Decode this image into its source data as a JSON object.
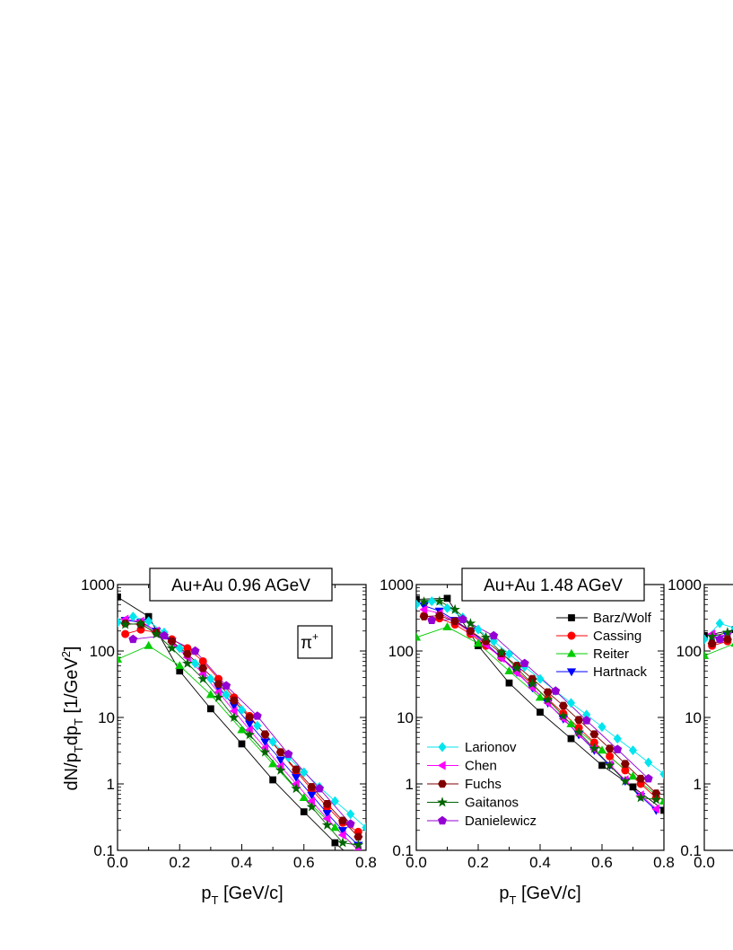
{
  "figure": {
    "ylabel": "dN/p",
    "ylabel_sub": "T",
    "ylabel_mid": "dp",
    "ylabel_sub2": "T",
    "ylabel_unit": " [1/GeV",
    "ylabel_sup": "2",
    "ylabel_end": "]",
    "xlabel_main": "p",
    "xlabel_sub": "T",
    "xlabel_unit": " [GeV/c]",
    "particle_label": "π",
    "particle_sup": "+"
  },
  "chart_data": [
    {
      "type": "line",
      "title": "Au+Au 0.96 AGeV",
      "xlim": [
        0.0,
        0.8
      ],
      "ylim": [
        0.1,
        1000
      ],
      "yscale": "log",
      "xticks": [
        "0.0",
        "0.2",
        "0.4",
        "0.6",
        "0.8"
      ],
      "yticks": [
        "0.1",
        "1",
        "10",
        "100",
        "1000"
      ],
      "series": [
        {
          "name": "Barz/Wolf",
          "color": "#000000",
          "marker": "square",
          "x": [
            0.0,
            0.1,
            0.2,
            0.3,
            0.4,
            0.5,
            0.6,
            0.7,
            0.8
          ],
          "y": [
            650,
            330,
            50,
            13.5,
            4.0,
            1.15,
            0.38,
            0.13,
            0.05
          ]
        },
        {
          "name": "Cassing",
          "color": "#ff0000",
          "marker": "circle",
          "x": [
            0.025,
            0.075,
            0.125,
            0.175,
            0.225,
            0.275,
            0.325,
            0.375,
            0.425,
            0.475,
            0.525,
            0.575,
            0.625,
            0.675,
            0.725,
            0.775
          ],
          "y": [
            180,
            210,
            190,
            150,
            110,
            70,
            38,
            20,
            10.5,
            5.5,
            3.0,
            1.55,
            0.82,
            0.45,
            0.26,
            0.19
          ]
        },
        {
          "name": "Reiter",
          "color": "#00cc00",
          "marker": "triangle-up",
          "x": [
            0.0,
            0.1,
            0.2,
            0.3,
            0.4,
            0.5,
            0.6,
            0.7,
            0.8
          ],
          "y": [
            75,
            120,
            60,
            22,
            6.5,
            2.0,
            0.62,
            0.22,
            0.08
          ]
        },
        {
          "name": "Hartnack",
          "color": "#0000ff",
          "marker": "triangle-down",
          "x": [
            0.025,
            0.075,
            0.125,
            0.175,
            0.225,
            0.275,
            0.325,
            0.375,
            0.425,
            0.475,
            0.525,
            0.575,
            0.625,
            0.675,
            0.725,
            0.775
          ],
          "y": [
            290,
            270,
            200,
            140,
            85,
            50,
            28,
            15,
            8.0,
            4.3,
            2.3,
            1.25,
            0.68,
            0.36,
            0.2,
            0.12
          ]
        },
        {
          "name": "Larionov",
          "color": "#00e5ee",
          "marker": "diamond",
          "x": [
            0.0,
            0.05,
            0.1,
            0.15,
            0.2,
            0.25,
            0.3,
            0.35,
            0.4,
            0.45,
            0.5,
            0.55,
            0.6,
            0.65,
            0.7,
            0.75,
            0.8
          ],
          "y": [
            270,
            330,
            280,
            190,
            110,
            65,
            38,
            22,
            13,
            7.5,
            4.3,
            2.5,
            1.5,
            0.9,
            0.55,
            0.35,
            0.22
          ]
        },
        {
          "name": "Chen",
          "color": "#ff00ff",
          "marker": "triangle-left",
          "x": [
            0.025,
            0.075,
            0.125,
            0.175,
            0.225,
            0.275,
            0.325,
            0.375,
            0.425,
            0.475,
            0.525,
            0.575,
            0.625,
            0.675,
            0.725,
            0.775
          ],
          "y": [
            300,
            280,
            200,
            135,
            80,
            45,
            24,
            12.5,
            6.5,
            3.5,
            1.85,
            1.0,
            0.55,
            0.3,
            0.17,
            0.1
          ]
        },
        {
          "name": "Fuchs",
          "color": "#800000",
          "marker": "hexagon",
          "x": [
            0.025,
            0.075,
            0.125,
            0.175,
            0.225,
            0.275,
            0.325,
            0.375,
            0.425,
            0.475,
            0.525,
            0.575,
            0.625,
            0.675,
            0.725,
            0.775
          ],
          "y": [
            260,
            250,
            190,
            140,
            90,
            55,
            32,
            18,
            10,
            5.6,
            3.0,
            1.65,
            0.9,
            0.5,
            0.28,
            0.16
          ]
        },
        {
          "name": "Gaitanos",
          "color": "#006400",
          "marker": "star",
          "x": [
            0.025,
            0.075,
            0.125,
            0.175,
            0.225,
            0.275,
            0.325,
            0.375,
            0.425,
            0.475,
            0.525,
            0.575,
            0.625,
            0.675,
            0.725,
            0.775
          ],
          "y": [
            250,
            260,
            180,
            110,
            65,
            38,
            20,
            10,
            5.5,
            3.0,
            1.6,
            0.85,
            0.45,
            0.24,
            0.13,
            0.12
          ]
        },
        {
          "name": "Danielewicz",
          "color": "#9400d3",
          "marker": "pentagon",
          "x": [
            0.05,
            0.15,
            0.25,
            0.35,
            0.45,
            0.55,
            0.65,
            0.75
          ],
          "y": [
            150,
            170,
            100,
            30,
            10.5,
            2.8,
            0.85,
            0.25
          ]
        }
      ]
    },
    {
      "type": "line",
      "title": "Au+Au 1.48 AGeV",
      "xlim": [
        0.0,
        0.8
      ],
      "ylim": [
        0.1,
        1000
      ],
      "yscale": "log",
      "xticks": [
        "0.0",
        "0.2",
        "0.4",
        "0.6",
        "0.8"
      ],
      "yticks": [
        "0.1",
        "1",
        "10",
        "100",
        "1000"
      ],
      "legend_top_right": [
        "Barz/Wolf",
        "Cassing",
        "Reiter",
        "Hartnack"
      ],
      "legend_bottom_left": [
        "Larionov",
        "Chen",
        "Fuchs",
        "Gaitanos",
        "Danielewicz"
      ],
      "series": [
        {
          "name": "Barz/Wolf",
          "color": "#000000",
          "marker": "square",
          "x": [
            0.0,
            0.1,
            0.2,
            0.3,
            0.4,
            0.5,
            0.6,
            0.7,
            0.8
          ],
          "y": [
            600,
            620,
            120,
            33,
            12,
            4.8,
            1.9,
            0.9,
            0.4
          ]
        },
        {
          "name": "Cassing",
          "color": "#ff0000",
          "marker": "circle",
          "x": [
            0.025,
            0.075,
            0.125,
            0.175,
            0.225,
            0.275,
            0.325,
            0.375,
            0.425,
            0.475,
            0.525,
            0.575,
            0.625,
            0.675,
            0.725,
            0.775
          ],
          "y": [
            340,
            310,
            250,
            180,
            120,
            80,
            50,
            31,
            19,
            11.5,
            7.0,
            4.2,
            2.6,
            1.6,
            1.0,
            0.62
          ]
        },
        {
          "name": "Reiter",
          "color": "#00cc00",
          "marker": "triangle-up",
          "x": [
            0.0,
            0.1,
            0.2,
            0.3,
            0.4,
            0.5,
            0.6,
            0.7,
            0.8
          ],
          "y": [
            160,
            230,
            130,
            50,
            20,
            8.0,
            3.2,
            1.3,
            0.55
          ]
        },
        {
          "name": "Hartnack",
          "color": "#0000ff",
          "marker": "triangle-down",
          "x": [
            0.025,
            0.075,
            0.125,
            0.175,
            0.225,
            0.275,
            0.325,
            0.375,
            0.425,
            0.475,
            0.525,
            0.575,
            0.625,
            0.675,
            0.725,
            0.775
          ],
          "y": [
            480,
            400,
            290,
            200,
            130,
            80,
            48,
            28,
            16.5,
            9.5,
            5.5,
            3.2,
            1.9,
            1.1,
            0.65,
            0.4
          ]
        },
        {
          "name": "Larionov",
          "color": "#00e5ee",
          "marker": "diamond",
          "x": [
            0.0,
            0.05,
            0.1,
            0.15,
            0.2,
            0.25,
            0.3,
            0.35,
            0.4,
            0.45,
            0.5,
            0.55,
            0.6,
            0.65,
            0.7,
            0.75,
            0.8
          ],
          "y": [
            500,
            560,
            440,
            320,
            210,
            140,
            90,
            58,
            38,
            25,
            16.5,
            11,
            7.2,
            4.8,
            3.2,
            2.1,
            1.4
          ]
        },
        {
          "name": "Chen",
          "color": "#ff00ff",
          "marker": "triangle-left",
          "x": [
            0.025,
            0.075,
            0.125,
            0.175,
            0.225,
            0.275,
            0.325,
            0.375,
            0.425,
            0.475,
            0.525,
            0.575,
            0.625,
            0.675,
            0.725,
            0.775
          ],
          "y": [
            420,
            370,
            280,
            190,
            125,
            78,
            47,
            28,
            16.5,
            9.6,
            5.6,
            3.3,
            1.95,
            1.15,
            0.68,
            0.42
          ]
        },
        {
          "name": "Fuchs",
          "color": "#800000",
          "marker": "hexagon",
          "x": [
            0.025,
            0.075,
            0.125,
            0.175,
            0.225,
            0.275,
            0.325,
            0.375,
            0.425,
            0.475,
            0.525,
            0.575,
            0.625,
            0.675,
            0.725,
            0.775
          ],
          "y": [
            330,
            340,
            280,
            200,
            140,
            92,
            60,
            38,
            24,
            15,
            9.2,
            5.6,
            3.4,
            2.0,
            1.2,
            0.72
          ]
        },
        {
          "name": "Gaitanos",
          "color": "#006400",
          "marker": "star",
          "x": [
            0.025,
            0.075,
            0.125,
            0.175,
            0.225,
            0.275,
            0.325,
            0.375,
            0.425,
            0.475,
            0.525,
            0.575,
            0.625,
            0.675,
            0.725,
            0.775
          ],
          "y": [
            550,
            560,
            420,
            260,
            160,
            95,
            55,
            32,
            18.5,
            10.5,
            6.0,
            3.4,
            1.9,
            1.1,
            0.62,
            0.58
          ]
        },
        {
          "name": "Danielewicz",
          "color": "#9400d3",
          "marker": "pentagon",
          "x": [
            0.05,
            0.15,
            0.25,
            0.35,
            0.45,
            0.55,
            0.65,
            0.75
          ],
          "y": [
            290,
            300,
            170,
            65,
            25,
            9.0,
            3.3,
            1.2
          ]
        }
      ]
    },
    {
      "type": "line",
      "title": "",
      "xlim": [
        0.0,
        0.8
      ],
      "ylim": [
        0.1,
        1000
      ],
      "yscale": "log",
      "xticks": [
        "0.0"
      ],
      "yticks": [
        "0.1",
        "1",
        "10",
        "100",
        "1000"
      ],
      "series": [
        {
          "name": "Barz/Wolf",
          "color": "#000000",
          "marker": "square",
          "x": [
            0.0,
            0.1
          ],
          "y": [
            170,
            210
          ]
        },
        {
          "name": "Cassing",
          "color": "#ff0000",
          "marker": "circle",
          "x": [
            0.025,
            0.075
          ],
          "y": [
            120,
            140
          ]
        },
        {
          "name": "Reiter",
          "color": "#00cc00",
          "marker": "triangle-up",
          "x": [
            0.0,
            0.1
          ],
          "y": [
            85,
            130
          ]
        },
        {
          "name": "Hartnack",
          "color": "#0000ff",
          "marker": "triangle-down",
          "x": [
            0.025,
            0.075
          ],
          "y": [
            160,
            170
          ]
        },
        {
          "name": "Larionov",
          "color": "#00e5ee",
          "marker": "diamond",
          "x": [
            0.0,
            0.05,
            0.1
          ],
          "y": [
            150,
            260,
            220
          ]
        },
        {
          "name": "Chen",
          "color": "#ff00ff",
          "marker": "triangle-left",
          "x": [
            0.025,
            0.075
          ],
          "y": [
            180,
            170
          ]
        },
        {
          "name": "Fuchs",
          "color": "#800000",
          "marker": "hexagon",
          "x": [
            0.025,
            0.075
          ],
          "y": [
            130,
            150
          ]
        },
        {
          "name": "Gaitanos",
          "color": "#006400",
          "marker": "star",
          "x": [
            0.025,
            0.075
          ],
          "y": [
            165,
            190
          ]
        },
        {
          "name": "Danielewicz",
          "color": "#9400d3",
          "marker": "pentagon",
          "x": [
            0.05
          ],
          "y": [
            150
          ]
        }
      ]
    }
  ]
}
